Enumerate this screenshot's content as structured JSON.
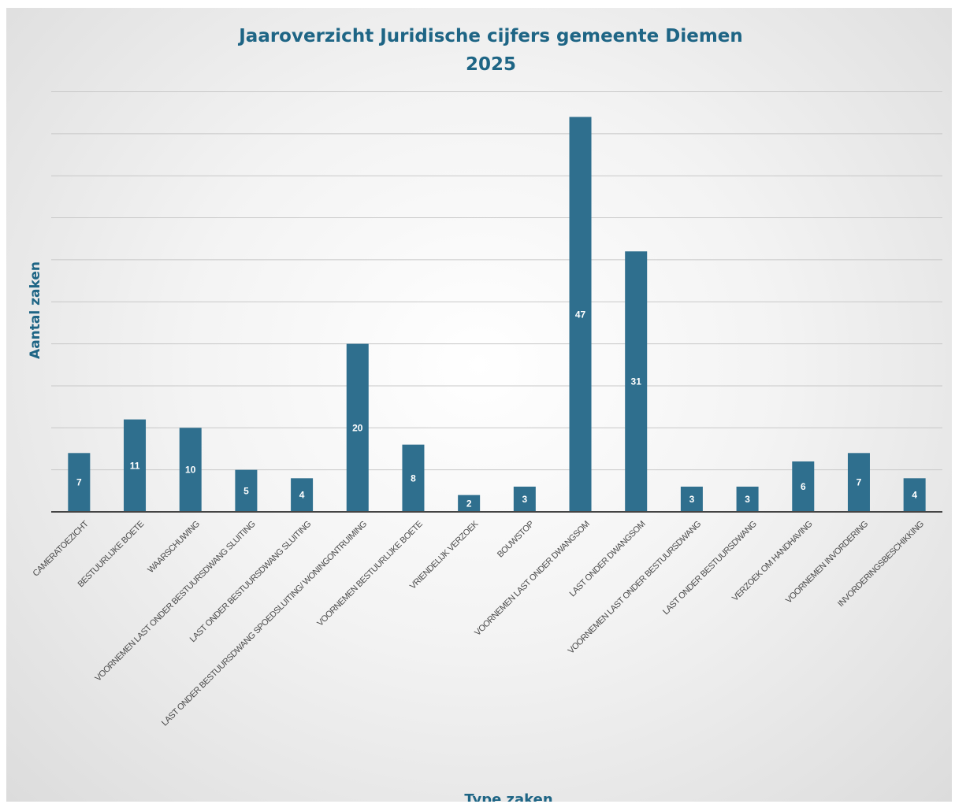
{
  "chart_data": {
    "type": "bar",
    "title": [
      "Jaaroverzicht  Juridische cijfers gemeente Diemen",
      "2025"
    ],
    "xlabel": "Type zaken",
    "ylabel": "Aantal zaken",
    "ylim": [
      0,
      50
    ],
    "gridline_step": 5,
    "grid": true,
    "legend": "none",
    "bar_color": "#2f6f8e",
    "categories": [
      "CAMERATOEZICHT",
      "BESTUURLIJKE BOETE",
      "WAARSCHUWING",
      "VOORNEMEN LAST ONDER BESTUURSDWANG SLUITING",
      "LAST ONDER BESTUURSDWANG SLUITING",
      "LAST ONDER BESTUURSDWANG SPOEDSLUITING/ WONINGONTRUIMING",
      "VOORNEMEN BESTUURLIJKE BOETE",
      "VRIENDELIJK VERZOEK",
      "BOUWSTOP",
      "VOORNEMEN LAST ONDER DWANGSOM",
      "LAST ONDER DWANGSOM",
      "VOORNEMEN LAST ONDER BESTUURSDWANG",
      "LAST ONDER BESTUURSDWANG",
      "VERZOEK OM HANDHAVING",
      "VOORNEMEN INVORDERING",
      "INVORDERINGSBESCHIKKING"
    ],
    "values": [
      7,
      11,
      10,
      5,
      4,
      20,
      8,
      2,
      3,
      47,
      31,
      3,
      3,
      6,
      7,
      4
    ]
  }
}
